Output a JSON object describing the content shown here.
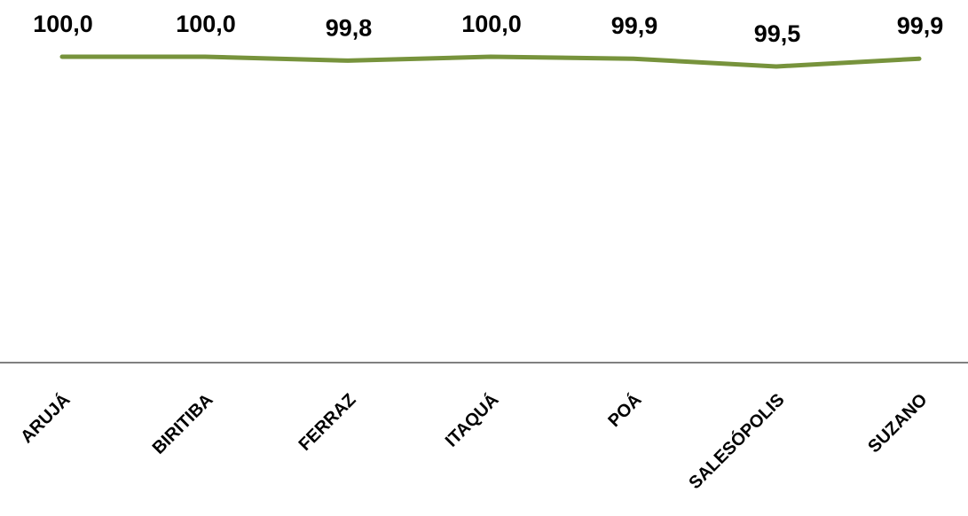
{
  "chart_data": {
    "type": "line",
    "categories": [
      "ARUJÁ",
      "BIRITIBA",
      "FERRAZ",
      "ITAQUÁ",
      "POÁ",
      "SALESÓPOLIS",
      "SUZANO"
    ],
    "values": [
      100.0,
      100.0,
      99.8,
      100.0,
      99.9,
      99.5,
      99.9
    ],
    "data_labels": [
      "100,0",
      "100,0",
      "99,8",
      "100,0",
      "99,9",
      "99,5",
      "99,9"
    ],
    "line_color": "#77933C",
    "axis_color": "#808080",
    "title": "",
    "xlabel": "",
    "ylabel": "",
    "grid": false,
    "legend": "none",
    "show_y_axis": false
  }
}
